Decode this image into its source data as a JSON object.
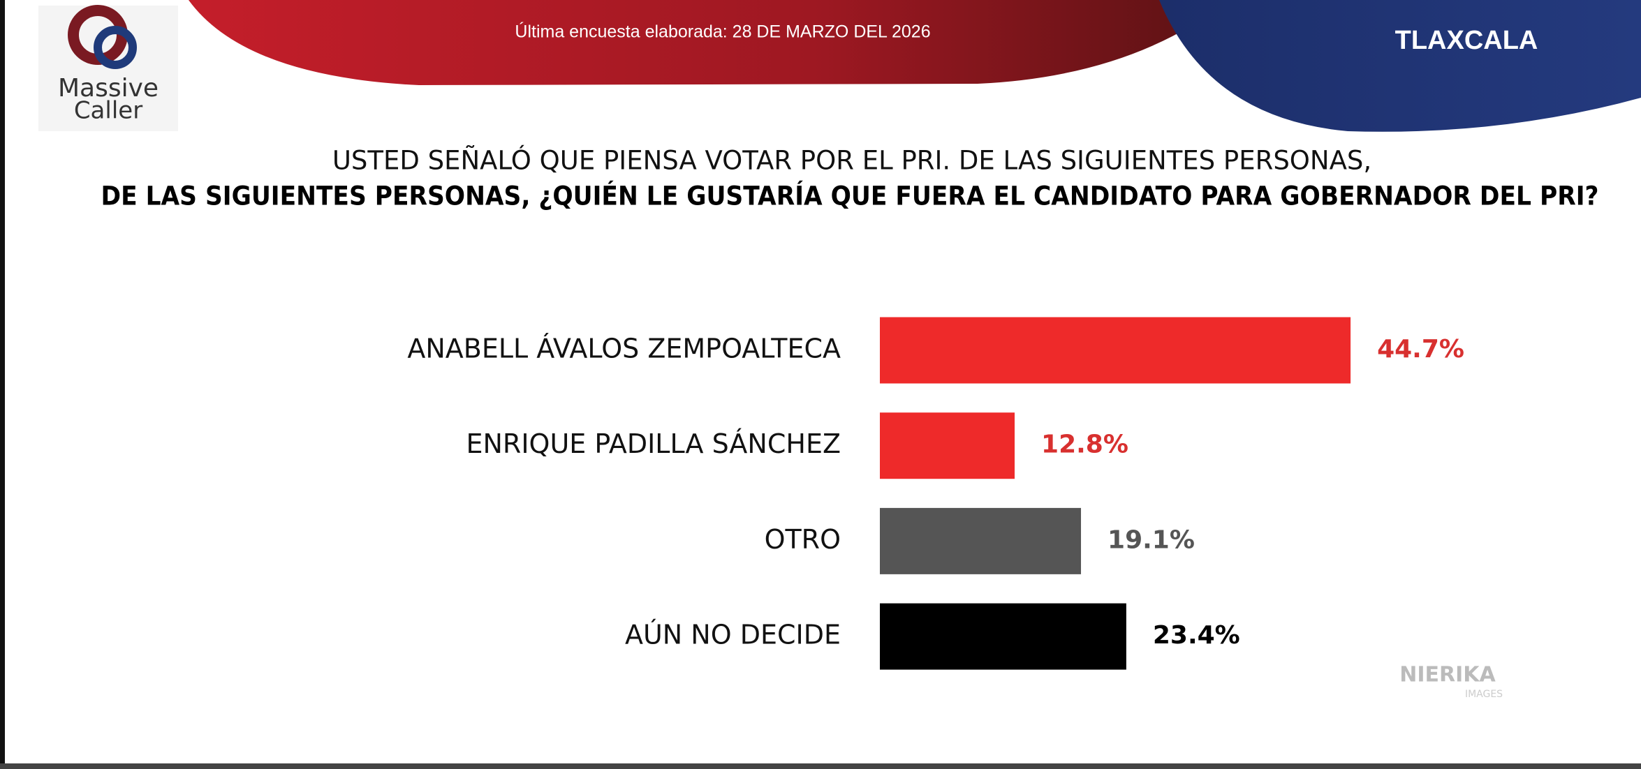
{
  "header": {
    "survey_date": "Última encuesta elaborada: 28 DE MARZO DEL 2026",
    "region": "TLAXCALA",
    "logo_top": "Massive",
    "logo_bottom": "Caller"
  },
  "watermark": {
    "brand": "NIERIKA",
    "sub": "IMAGES"
  },
  "chart_data": {
    "type": "bar",
    "orientation": "horizontal",
    "title": "USTED SEÑALÓ QUE PIENSA VOTAR POR EL PRI. DE LAS SIGUIENTES PERSONAS,",
    "subtitle": "DE LAS SIGUIENTES PERSONAS, ¿QUIÉN LE GUSTARÍA QUE FUERA EL CANDIDATO PARA GOBERNADOR DEL PRI?",
    "categories": [
      "ANABELL ÁVALOS ZEMPOALTECA",
      "ENRIQUE PADILLA SÁNCHEZ",
      "OTRO",
      "AÚN NO DECIDE"
    ],
    "values": [
      44.7,
      12.8,
      19.1,
      23.4
    ],
    "value_labels": [
      "44.7%",
      "12.8%",
      "19.1%",
      "23.4%"
    ],
    "colors": [
      "#ee2a2a",
      "#ee2a2a",
      "#555555",
      "#000000"
    ],
    "label_colors": [
      "#d8302f",
      "#d8302f",
      "#555555",
      "#000000"
    ]
  }
}
